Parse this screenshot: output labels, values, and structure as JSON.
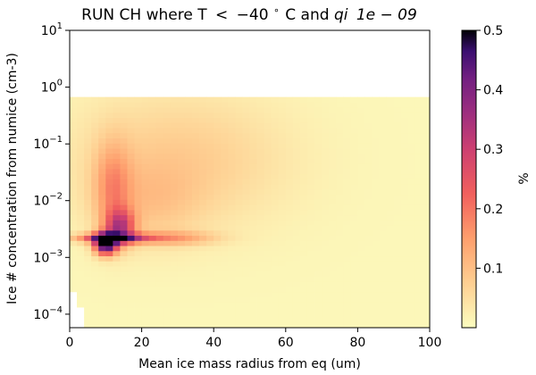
{
  "chart_data": {
    "type": "heatmap",
    "title": "RUN CH where T < −40°C and qi > 1e−09",
    "title_parts": {
      "prefix": "RUN CH where T",
      "lt1": "<",
      "tval": "−40",
      "deg": "∘",
      "tunit": "C and ",
      "qi": "qi",
      "lt2": ">",
      "qval": "1e − 09"
    },
    "xlabel": "Mean ice mass radius from eq (um)",
    "ylabel": "Ice # concentration from numice (cm-3)",
    "colorbar_label": "%",
    "colormap": "magma_r",
    "log_y": true,
    "grid": false,
    "xlim": [
      0,
      100
    ],
    "ylim": [
      5e-05,
      10
    ],
    "x_ticks": [
      "0",
      "20",
      "40",
      "60",
      "80",
      "100"
    ],
    "y_ticks": [
      {
        "base": "10",
        "exp": "1"
      },
      {
        "base": "10",
        "exp": "0"
      },
      {
        "base": "10",
        "exp": "−1"
      },
      {
        "base": "10",
        "exp": "−2"
      },
      {
        "base": "10",
        "exp": "−3"
      },
      {
        "base": "10",
        "exp": "−4"
      }
    ],
    "colorbar_range": [
      0,
      0.5
    ],
    "colorbar_ticks": [
      "0.1",
      "0.2",
      "0.3",
      "0.4",
      "0.5"
    ],
    "data_extent": {
      "x_max": 100,
      "y_top": 0.6,
      "y_bottom_at_min_radius": 0.0003,
      "y_bottom_min": 5e-05
    },
    "features": [
      {
        "desc": "horizontal ridge",
        "y": 0.002,
        "x_range": [
          3,
          24
        ],
        "peak": 0.5
      },
      {
        "desc": "hotspot",
        "x": 10,
        "y": 0.0015,
        "peak": 0.5
      },
      {
        "desc": "plume",
        "x": 14,
        "y": 0.003,
        "peak": 0.3
      }
    ]
  }
}
